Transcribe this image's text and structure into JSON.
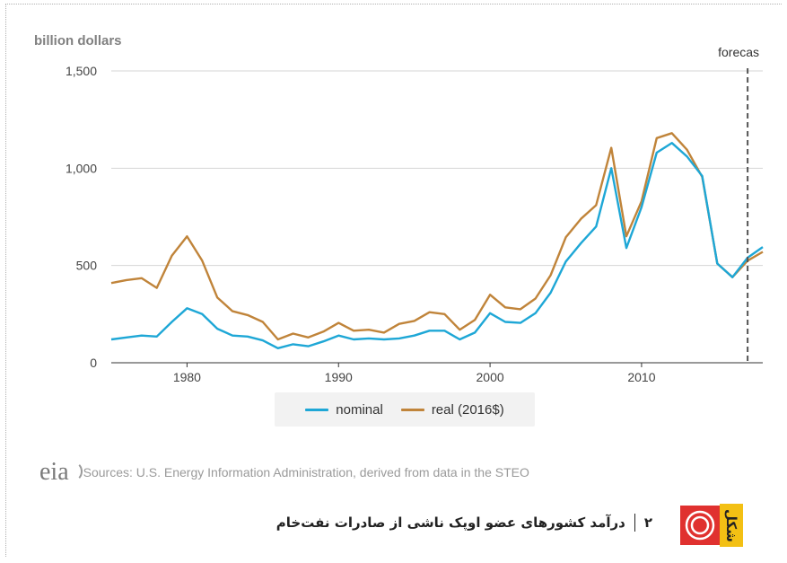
{
  "chart_data": {
    "type": "line",
    "ylabel": "billion dollars",
    "ylim": [
      0,
      1500
    ],
    "yticks": [
      0,
      500,
      1000,
      1500
    ],
    "ytick_labels": [
      "0",
      "500",
      "1,000",
      "1,500"
    ],
    "xlim": [
      1975,
      2018
    ],
    "xticks": [
      1980,
      1990,
      2000,
      2010
    ],
    "xtick_labels": [
      "1980",
      "1990",
      "2000",
      "2010"
    ],
    "grid": true,
    "forecast_label": "forecas",
    "forecast_x": 2017,
    "legend_position": "bottom",
    "x": [
      1975,
      1976,
      1977,
      1978,
      1979,
      1980,
      1981,
      1982,
      1983,
      1984,
      1985,
      1986,
      1987,
      1988,
      1989,
      1990,
      1991,
      1992,
      1993,
      1994,
      1995,
      1996,
      1997,
      1998,
      1999,
      2000,
      2001,
      2002,
      2003,
      2004,
      2005,
      2006,
      2007,
      2008,
      2009,
      2010,
      2011,
      2012,
      2013,
      2014,
      2015,
      2016,
      2017,
      2018
    ],
    "series": [
      {
        "name": "nominal",
        "color": "#1ea7d6",
        "values": [
          120,
          130,
          140,
          135,
          210,
          280,
          250,
          175,
          140,
          135,
          115,
          75,
          95,
          85,
          110,
          140,
          120,
          125,
          120,
          125,
          140,
          165,
          165,
          120,
          155,
          255,
          210,
          205,
          255,
          360,
          520,
          615,
          700,
          1000,
          590,
          800,
          1080,
          1130,
          1060,
          960,
          510,
          440,
          540,
          595
        ]
      },
      {
        "name": "real (2016$)",
        "color": "#c0843a",
        "values": [
          410,
          425,
          435,
          385,
          550,
          650,
          525,
          335,
          265,
          245,
          210,
          120,
          150,
          130,
          160,
          205,
          165,
          170,
          155,
          200,
          215,
          260,
          250,
          170,
          220,
          350,
          285,
          275,
          330,
          450,
          645,
          740,
          810,
          1105,
          650,
          830,
          1155,
          1180,
          1095,
          955,
          510,
          440,
          525,
          570
        ]
      }
    ]
  },
  "legend": {
    "nominal": "nominal",
    "real": "real (2016$)"
  },
  "source": {
    "logo": "eia",
    "text": "Sources: U.S. Energy Information Administration, derived from data in the STEO"
  },
  "caption": {
    "number": "۲",
    "text": "درآمد کشورهای عضو اوپک ناشی از صادرات نفت‌خام",
    "badge_word": "شکل"
  }
}
